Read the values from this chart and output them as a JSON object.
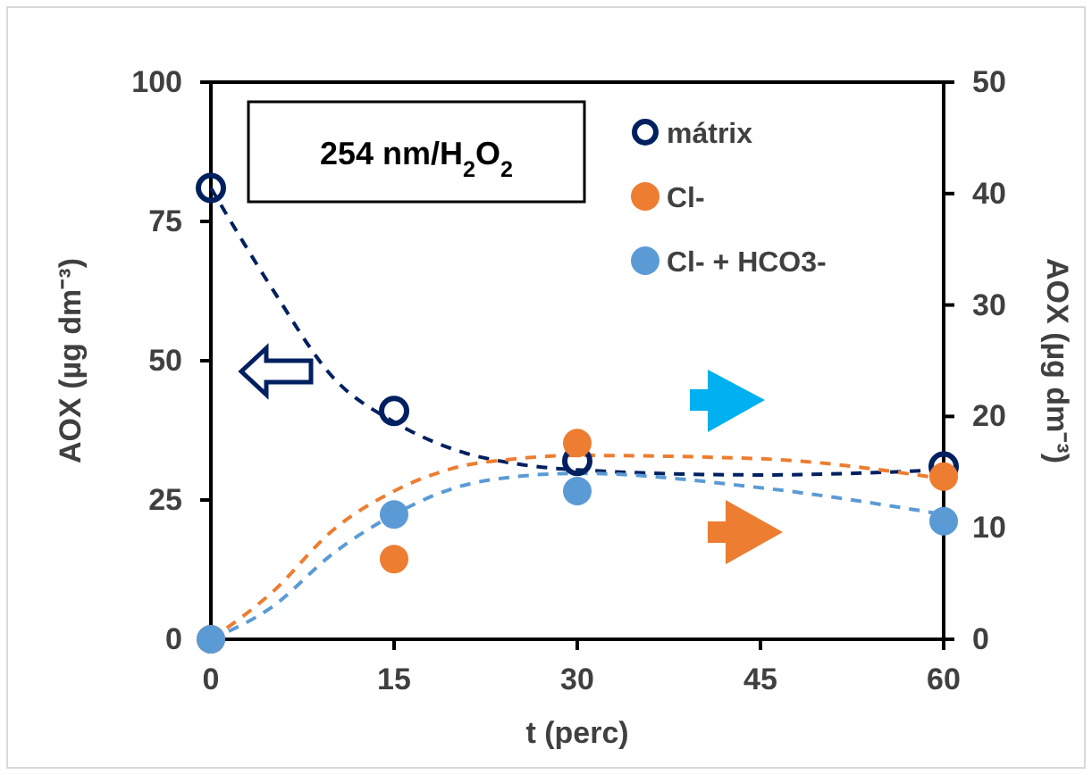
{
  "chart_data": {
    "type": "scatter",
    "x": [
      0,
      15,
      30,
      60
    ],
    "xlabel": "t (perc)",
    "ylabel": "AOX (µg dm⁻³)",
    "y2label": "AOX (µg dm⁻³)",
    "xlim": [
      0,
      60
    ],
    "xticks": [
      0,
      15,
      30,
      45,
      60
    ],
    "ylim": [
      0,
      100
    ],
    "yticks": [
      0,
      25,
      50,
      75,
      100
    ],
    "y2lim": [
      0,
      50
    ],
    "y2ticks": [
      0,
      10,
      20,
      30,
      40,
      50
    ],
    "annotations": [
      "254 nm/H$_{2}$O$_{2}$"
    ],
    "legend": "top right",
    "grid": false,
    "marker": "circle",
    "series": [
      {
        "name": "mátrix",
        "color": "#002060",
        "values": [
          81,
          41,
          32,
          31
        ]
      },
      {
        "name": "Cl-",
        "color": "#ed7d31",
        "values": [
          0,
          7.2,
          17.6,
          14.6
        ],
        "axis": "y2"
      },
      {
        "name": "Cl- + HCO3-",
        "color": "#5b9bd5",
        "values": [
          0,
          11.2,
          13.3,
          10.6
        ],
        "axis": "y2"
      },
      {
        "type": "line",
        "marker": "none",
        "color": "#002060",
        "line_style": "dashed",
        "x": [
          0,
          5,
          10,
          15,
          20,
          25,
          30,
          45,
          60
        ],
        "values": [
          81,
          63,
          47,
          39,
          34,
          31.5,
          30.4,
          29.5,
          30.4
        ]
      },
      {
        "type": "line",
        "marker": "none",
        "color": "#ed7d31",
        "line_style": "dashed",
        "axis": "y2",
        "x": [
          0,
          5,
          10,
          15,
          20,
          25,
          30,
          45,
          60
        ],
        "values": [
          0,
          4.2,
          9.8,
          13.3,
          15.4,
          16.2,
          16.5,
          16.2,
          14.4
        ]
      },
      {
        "type": "line",
        "marker": "none",
        "color": "#5b9bd5",
        "line_style": "dashed",
        "axis": "y2",
        "x": [
          0,
          5,
          10,
          15,
          20,
          25,
          30,
          45,
          60
        ],
        "values": [
          0,
          2.9,
          7.7,
          11.2,
          13.6,
          14.6,
          14.9,
          13.6,
          11.2
        ]
      }
    ]
  }
}
